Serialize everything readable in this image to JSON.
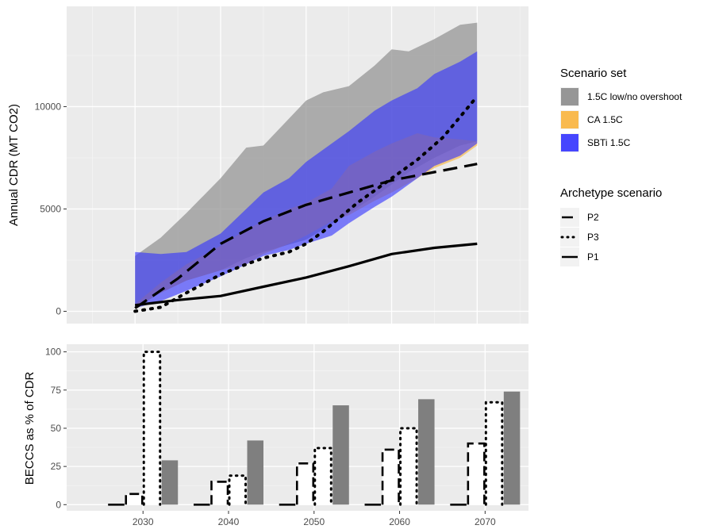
{
  "chart_data": [
    {
      "type": "area",
      "ylabel": "Annual CDR (MT CO2)",
      "xlim": [
        2022,
        2076
      ],
      "ylim": [
        -600,
        14900
      ],
      "y_ticks": [
        0,
        5000,
        10000
      ],
      "x_ticks": [
        2030,
        2040,
        2050,
        2060,
        2070
      ],
      "grid": true,
      "bands": [
        {
          "name": "1.5C low/no overshoot",
          "color": "#969696",
          "x": [
            2030,
            2033,
            2036,
            2040,
            2043,
            2045,
            2050,
            2052,
            2055,
            2058,
            2060,
            2062,
            2065,
            2068,
            2070
          ],
          "lower": [
            150,
            900,
            1500,
            2000,
            2600,
            2900,
            3500,
            4000,
            4800,
            5600,
            6200,
            6800,
            7500,
            8100,
            8300
          ],
          "upper": [
            2700,
            3600,
            4800,
            6500,
            8000,
            8100,
            10300,
            10700,
            11000,
            12000,
            12800,
            12700,
            13300,
            14000,
            14100
          ]
        },
        {
          "name": "CA 1.5C",
          "color": "#f9b43c",
          "x": [
            2030,
            2033,
            2036,
            2040,
            2043,
            2045,
            2048,
            2050,
            2053,
            2055,
            2058,
            2060,
            2063,
            2065,
            2068,
            2070
          ],
          "lower": [
            200,
            900,
            1500,
            2000,
            2300,
            2800,
            3300,
            3700,
            4400,
            4700,
            5400,
            5800,
            6500,
            7000,
            7500,
            8100
          ],
          "upper": [
            350,
            1400,
            2300,
            3200,
            4000,
            4400,
            5000,
            5300,
            6000,
            7100,
            7800,
            8200,
            8700,
            8500,
            8400,
            8300
          ]
        },
        {
          "name": "SBTi 1.5C",
          "color": "#3333ff",
          "x": [
            2030,
            2033,
            2036,
            2040,
            2043,
            2045,
            2048,
            2050,
            2053,
            2055,
            2058,
            2060,
            2063,
            2065,
            2068,
            2070
          ],
          "lower": [
            150,
            500,
            1000,
            1700,
            2300,
            2700,
            3000,
            3300,
            3700,
            4300,
            5100,
            5600,
            6500,
            7100,
            7600,
            8200
          ],
          "upper": [
            2900,
            2800,
            2900,
            3800,
            5000,
            5800,
            6500,
            7300,
            8200,
            8800,
            9800,
            10300,
            10900,
            11600,
            12200,
            12700
          ]
        }
      ],
      "lines": [
        {
          "name": "P2",
          "style": "longdash",
          "x": [
            2030,
            2035,
            2040,
            2045,
            2050,
            2055,
            2060,
            2065,
            2070
          ],
          "y": [
            150,
            1600,
            3300,
            4400,
            5200,
            5800,
            6400,
            6800,
            7200
          ]
        },
        {
          "name": "P3",
          "style": "dotted",
          "x": [
            2030,
            2033,
            2036,
            2040,
            2043,
            2045,
            2048,
            2050,
            2052,
            2054,
            2056,
            2058,
            2060,
            2063,
            2066,
            2068,
            2070
          ],
          "y": [
            0,
            200,
            900,
            1800,
            2300,
            2600,
            2900,
            3300,
            3900,
            4600,
            5300,
            5900,
            6500,
            7400,
            8500,
            9500,
            10500
          ]
        },
        {
          "name": "P1",
          "style": "solid",
          "x": [
            2030,
            2035,
            2040,
            2045,
            2050,
            2055,
            2060,
            2065,
            2070
          ],
          "y": [
            300,
            550,
            750,
            1200,
            1650,
            2200,
            2800,
            3100,
            3300
          ]
        }
      ],
      "legend": {
        "position": "right",
        "fill_title": "Scenario set",
        "line_title": "Archetype scenario"
      }
    },
    {
      "type": "bar",
      "ylabel": "BECCS as % of CDR",
      "categories": [
        "2030",
        "2040",
        "2050",
        "2060",
        "2070"
      ],
      "ylim": [
        -4,
        105
      ],
      "y_ticks": [
        0,
        25,
        50,
        75,
        100
      ],
      "grid": true,
      "series": [
        {
          "name": "P1",
          "style": "solid",
          "values": [
            0,
            0,
            0,
            0,
            0
          ]
        },
        {
          "name": "P2",
          "style": "longdash",
          "values": [
            7,
            15,
            27,
            36,
            40
          ]
        },
        {
          "name": "P3",
          "style": "dotted",
          "values": [
            100,
            19,
            37,
            50,
            67
          ]
        },
        {
          "name": "1.5C low/no overshoot",
          "style": "filled",
          "color": "#7f7f7f",
          "values": [
            29,
            42,
            65,
            69,
            74
          ]
        }
      ]
    }
  ]
}
